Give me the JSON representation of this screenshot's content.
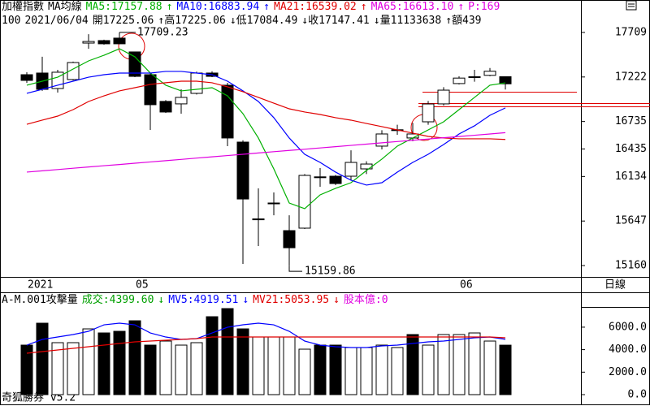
{
  "period": "日線",
  "footer": "奇狐勝券 v5.2",
  "quote": [
    "100",
    "2021/06/04",
    "開17225.06",
    "↑高17225.06",
    "↓低17084.49",
    "↓收17147.41",
    "↓量11133638",
    "↑額439"
  ],
  "chart_data": [
    {
      "type": "candlestick",
      "title": "加權指數",
      "subtitle": "MA均線",
      "categories": [
        "2021",
        null,
        null,
        null,
        null,
        null,
        null,
        "05",
        null,
        null,
        null,
        null,
        null,
        null,
        null,
        null,
        null,
        null,
        null,
        null,
        null,
        null,
        null,
        null,
        null,
        null,
        null,
        null,
        "06",
        null,
        null,
        null
      ],
      "open": [
        17247,
        17265,
        17096,
        17194,
        17593,
        17620,
        17647,
        17496,
        17247,
        16955,
        16928,
        17043,
        17265,
        17132,
        16510,
        15666,
        15844,
        15542,
        15569,
        16128,
        16137,
        16137,
        16217,
        16466,
        16640,
        16555,
        16732,
        16928,
        17150,
        17222,
        17240,
        17225.06
      ],
      "high": [
        17274,
        17443,
        17300,
        17390,
        17690,
        17630,
        17709.23,
        17500,
        17260,
        16970,
        17087,
        17280,
        17285,
        17158,
        16530,
        16004,
        15960,
        15710,
        16160,
        16226,
        16150,
        16420,
        16300,
        16640,
        16700,
        16720,
        16960,
        17110,
        17230,
        17300,
        17320,
        17225.06
      ],
      "low": [
        17158,
        17070,
        17052,
        17185,
        17531,
        17575,
        17580,
        17220,
        16643,
        16830,
        16821,
        17030,
        17220,
        16466,
        15178,
        15373,
        15710,
        15159.86,
        15560,
        16022,
        16040,
        16093,
        16160,
        16430,
        16590,
        16520,
        16700,
        16910,
        17140,
        17170,
        17230,
        17084.49
      ],
      "close": [
        17185,
        17087,
        17274,
        17380,
        17610,
        17585,
        17585,
        17229,
        16919,
        16839,
        16999,
        17265,
        17229,
        16555,
        15888,
        15670,
        15840,
        15355,
        16146,
        16130,
        16057,
        16288,
        16270,
        16599,
        16645,
        16599,
        16927,
        17078,
        17210,
        17225,
        17285,
        17147.41
      ],
      "up_color": "#ffffff",
      "down_color": "#000000",
      "series": [
        {
          "name": "MA5:17157.88",
          "color": "#00b000",
          "values": [
            17132,
            17176,
            17220,
            17309,
            17398,
            17460,
            17531,
            17443,
            17265,
            17132,
            17070,
            17087,
            17105,
            17016,
            16821,
            16555,
            16217,
            15844,
            15782,
            15933,
            16004,
            16066,
            16199,
            16324,
            16466,
            16555,
            16643,
            16732,
            16865,
            16999,
            17132,
            17157.88
          ]
        },
        {
          "name": "MA10:16883.94",
          "color": "#0000ff",
          "values": [
            17043,
            17087,
            17132,
            17176,
            17220,
            17247,
            17265,
            17265,
            17265,
            17283,
            17283,
            17265,
            17247,
            17176,
            17070,
            16954,
            16777,
            16555,
            16377,
            16288,
            16182,
            16093,
            16040,
            16066,
            16182,
            16288,
            16377,
            16483,
            16599,
            16688,
            16803,
            16883.94
          ]
        },
        {
          "name": "MA21:16539.02",
          "color": "#e00000",
          "values": [
            16705,
            16750,
            16794,
            16865,
            16954,
            17016,
            17070,
            17105,
            17141,
            17159,
            17176,
            17176,
            17159,
            17114,
            17061,
            16999,
            16936,
            16874,
            16839,
            16812,
            16777,
            16750,
            16714,
            16679,
            16643,
            16608,
            16572,
            16555,
            16546,
            16546,
            16546,
            16539.02
          ]
        },
        {
          "name": "MA65:16613.10",
          "color": "#e000e0",
          "values": [
            16182,
            16196,
            16210,
            16224,
            16238,
            16252,
            16265,
            16279,
            16293,
            16307,
            16321,
            16335,
            16349,
            16363,
            16377,
            16391,
            16405,
            16419,
            16432,
            16446,
            16460,
            16474,
            16488,
            16502,
            16516,
            16530,
            16544,
            16558,
            16571,
            16585,
            16599,
            16613.1
          ]
        }
      ],
      "legend_arrows": [
        "↑",
        "↑",
        "↑",
        "↑"
      ],
      "extra": "P:169",
      "extra_color": "#e000e0",
      "annotations": [
        {
          "text": "17709.23",
          "value": 17709.23
        },
        {
          "text": "15159.86",
          "value": 15159.86
        }
      ],
      "ylim": [
        15045,
        17904
      ],
      "yticks": [
        15160,
        15647,
        16134,
        16435,
        16735,
        17222,
        17709
      ],
      "grid": false
    },
    {
      "type": "bar",
      "title": "A-M.001攻擊量",
      "name": "成交:4399.60",
      "color": "#00a000",
      "values": [
        4404,
        6354,
        4621,
        4621,
        5848,
        5487,
        5632,
        6570,
        4404,
        4765,
        4404,
        4621,
        6931,
        7653,
        5848,
        5126,
        5126,
        5126,
        4043,
        4404,
        4404,
        4188,
        4188,
        4404,
        4188,
        5343,
        4404,
        5343,
        5343,
        5487,
        4765,
        4399.6
      ],
      "bar_colors": [
        "#000000",
        "#000000",
        "#ffffff",
        "#ffffff",
        "#ffffff",
        "#000000",
        "#000000",
        "#000000",
        "#000000",
        "#ffffff",
        "#ffffff",
        "#ffffff",
        "#000000",
        "#000000",
        "#000000",
        "#ffffff",
        "#ffffff",
        "#ffffff",
        "#ffffff",
        "#000000",
        "#000000",
        "#ffffff",
        "#ffffff",
        "#ffffff",
        "#ffffff",
        "#000000",
        "#ffffff",
        "#ffffff",
        "#ffffff",
        "#ffffff",
        "#ffffff",
        "#000000"
      ],
      "series": [
        {
          "name": "MV5:4919.51",
          "color": "#0000ff",
          "values": [
            4404,
            4910,
            5126,
            5343,
            5632,
            6209,
            6354,
            6209,
            5487,
            5126,
            4910,
            4982,
            5487,
            5993,
            6209,
            6354,
            6209,
            5632,
            4765,
            4404,
            4260,
            4188,
            4188,
            4332,
            4404,
            4549,
            4693,
            4765,
            4910,
            5054,
            5126,
            4919.51
          ]
        },
        {
          "name": "MV21:5053.95",
          "color": "#e00000",
          "values": [
            3682,
            3827,
            3971,
            4115,
            4260,
            4404,
            4549,
            4693,
            4765,
            4837,
            4910,
            4982,
            5126,
            5126,
            5126,
            5126,
            5126,
            5126,
            5126,
            5126,
            5126,
            5126,
            5126,
            5126,
            5126,
            5126,
            5126,
            5126,
            5126,
            5126,
            5126,
            5053.95
          ]
        }
      ],
      "legend_arrows": [
        "↓",
        "↓",
        "↓"
      ],
      "extra": "股本億:0",
      "extra_color": "#e000e0",
      "ylim": [
        -290,
        7800
      ],
      "yticks": [
        {
          "value": 0,
          "label": "0.0"
        },
        {
          "value": 2000,
          "label": "2000.0"
        },
        {
          "value": 4000,
          "label": "4000.0"
        },
        {
          "value": 6000,
          "label": "6000.0"
        }
      ],
      "grid": false
    }
  ]
}
